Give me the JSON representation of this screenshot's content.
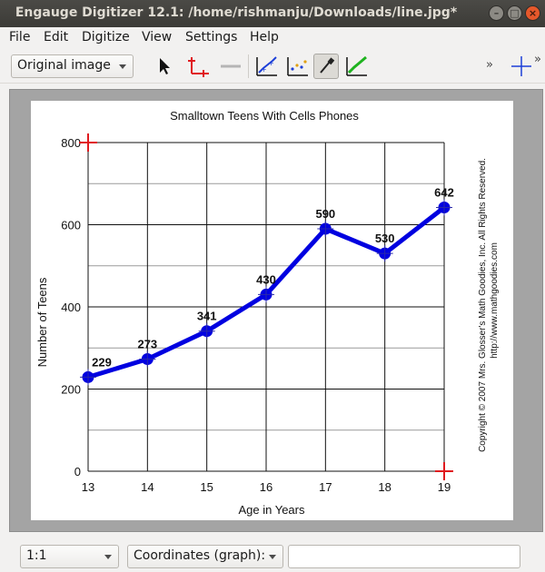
{
  "window": {
    "title": "Engauge Digitizer 12.1: /home/rishmanju/Downloads/line.jpg*",
    "minimize_icon": "minimize-icon",
    "maximize_icon": "maximize-icon",
    "close_icon": "close-icon"
  },
  "menu": {
    "items": [
      "File",
      "Edit",
      "Digitize",
      "View",
      "Settings",
      "Help"
    ]
  },
  "toolbar": {
    "background_select": "Original image",
    "tools": [
      {
        "name": "select-tool",
        "icon": "arrow-pointer-icon"
      },
      {
        "name": "axis-point-tool",
        "icon": "axis-point-icon"
      },
      {
        "name": "scale-bar-tool",
        "icon": "scale-bar-icon"
      },
      {
        "name": "curve-point-tool",
        "icon": "curve-point-icon"
      },
      {
        "name": "point-match-tool",
        "icon": "point-match-icon"
      },
      {
        "name": "color-picker-tool",
        "icon": "eyedropper-icon"
      },
      {
        "name": "segment-fill-tool",
        "icon": "segment-fill-icon"
      }
    ],
    "overflow_label": "»",
    "colors": {
      "blue": "#1c3fd8",
      "red": "#e0191e",
      "green": "#1fb31f"
    }
  },
  "chart_data": {
    "type": "line",
    "title": "Smalltown Teens With Cells Phones",
    "xlabel": "Age in Years",
    "ylabel": "Number of Teens",
    "x": [
      13,
      14,
      15,
      16,
      17,
      18,
      19
    ],
    "y": [
      229,
      273,
      341,
      430,
      590,
      530,
      642
    ],
    "data_labels": [
      "229",
      "273",
      "341",
      "430",
      "590",
      "530",
      "642"
    ],
    "x_ticks": [
      "13",
      "14",
      "15",
      "16",
      "17",
      "18",
      "19"
    ],
    "y_ticks": [
      "0",
      "200",
      "400",
      "600",
      "800"
    ],
    "xlim": [
      13,
      19
    ],
    "ylim": [
      0,
      800
    ],
    "grid": true,
    "copyright": "Copyright © 2007 Mrs. Glosser's Math Goodies, Inc. All Rights Reserved.",
    "url": "http://www.mathgoodies.com",
    "line_color": "#0000e0",
    "axis_marker_color": "#e0191e"
  },
  "status": {
    "zoom": "1:1",
    "coordinates_label": "Coordinates (graph):",
    "coordinates_value": ""
  }
}
